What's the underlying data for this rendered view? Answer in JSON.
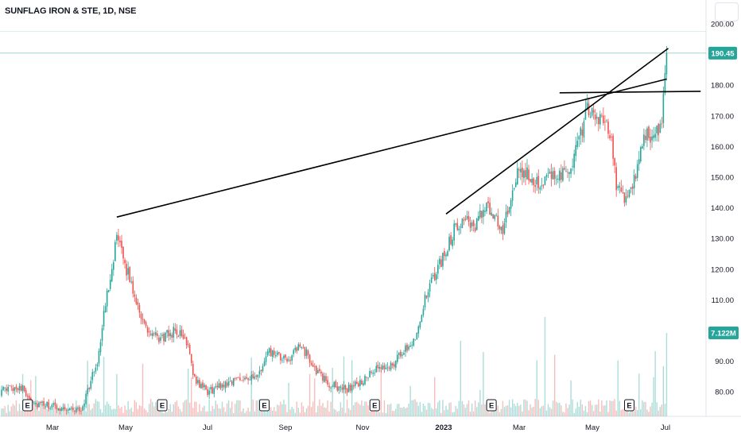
{
  "header": {
    "title": "SUNFLAG IRON & STE, 1D, NSE"
  },
  "colors": {
    "up": "#26a69a",
    "down": "#ef5350",
    "line": "#000000",
    "price_tag": "#26a69a",
    "volume_tag": "#26a69a"
  },
  "chart_data": {
    "type": "candlestick",
    "x_ticks": [
      {
        "label": "Mar",
        "bold": false
      },
      {
        "label": "May",
        "bold": false
      },
      {
        "label": "Jul",
        "bold": false
      },
      {
        "label": "Sep",
        "bold": false
      },
      {
        "label": "Nov",
        "bold": false
      },
      {
        "label": "2023",
        "bold": true
      },
      {
        "label": "Mar",
        "bold": false
      },
      {
        "label": "May",
        "bold": false
      },
      {
        "label": "Jul",
        "bold": false
      }
    ],
    "y_ticks": [
      "200.00",
      "190.00",
      "180.00",
      "170.00",
      "160.00",
      "150.00",
      "140.00",
      "130.00",
      "120.00",
      "110.00",
      "90.00",
      "80.00"
    ],
    "y_range": [
      72,
      200
    ],
    "last_price": "190.45",
    "last_price_value": 190.45,
    "volume_label": "7.122M",
    "earnings_marker": "E",
    "anchors": [
      {
        "d": 0,
        "p": 80
      },
      {
        "d": 12,
        "p": 82
      },
      {
        "d": 22,
        "p": 76
      },
      {
        "d": 35,
        "p": 75
      },
      {
        "d": 50,
        "p": 74
      },
      {
        "d": 60,
        "p": 90
      },
      {
        "d": 66,
        "p": 112
      },
      {
        "d": 72,
        "p": 130
      },
      {
        "d": 78,
        "p": 120
      },
      {
        "d": 84,
        "p": 110
      },
      {
        "d": 90,
        "p": 100
      },
      {
        "d": 98,
        "p": 97
      },
      {
        "d": 108,
        "p": 100
      },
      {
        "d": 116,
        "p": 96
      },
      {
        "d": 120,
        "p": 84
      },
      {
        "d": 128,
        "p": 80
      },
      {
        "d": 140,
        "p": 83
      },
      {
        "d": 150,
        "p": 85
      },
      {
        "d": 158,
        "p": 84
      },
      {
        "d": 166,
        "p": 93
      },
      {
        "d": 176,
        "p": 90
      },
      {
        "d": 186,
        "p": 95
      },
      {
        "d": 196,
        "p": 86
      },
      {
        "d": 204,
        "p": 82
      },
      {
        "d": 214,
        "p": 81
      },
      {
        "d": 222,
        "p": 83
      },
      {
        "d": 232,
        "p": 87
      },
      {
        "d": 242,
        "p": 89
      },
      {
        "d": 250,
        "p": 94
      },
      {
        "d": 256,
        "p": 98
      },
      {
        "d": 262,
        "p": 110
      },
      {
        "d": 268,
        "p": 118
      },
      {
        "d": 274,
        "p": 125
      },
      {
        "d": 280,
        "p": 133
      },
      {
        "d": 287,
        "p": 138
      },
      {
        "d": 292,
        "p": 132
      },
      {
        "d": 298,
        "p": 140
      },
      {
        "d": 305,
        "p": 138
      },
      {
        "d": 310,
        "p": 132
      },
      {
        "d": 316,
        "p": 145
      },
      {
        "d": 320,
        "p": 152
      },
      {
        "d": 328,
        "p": 150
      },
      {
        "d": 336,
        "p": 148
      },
      {
        "d": 344,
        "p": 152
      },
      {
        "d": 350,
        "p": 150
      },
      {
        "d": 356,
        "p": 160
      },
      {
        "d": 362,
        "p": 172
      },
      {
        "d": 370,
        "p": 168
      },
      {
        "d": 376,
        "p": 165
      },
      {
        "d": 380,
        "p": 148
      },
      {
        "d": 386,
        "p": 143
      },
      {
        "d": 392,
        "p": 150
      },
      {
        "d": 398,
        "p": 165
      },
      {
        "d": 404,
        "p": 162
      },
      {
        "d": 408,
        "p": 170
      },
      {
        "d": 411,
        "p": 190
      }
    ],
    "trend_lines": [
      {
        "d1": 72,
        "p1": 137,
        "d2": 411,
        "p2": 182
      },
      {
        "d1": 275,
        "p1": 138,
        "d2": 412,
        "p2": 192
      },
      {
        "d1": 345,
        "p1": 177.5,
        "d2": 432,
        "p2": 178
      }
    ],
    "earnings_days": [
      17,
      100,
      163,
      231,
      303,
      388
    ]
  }
}
